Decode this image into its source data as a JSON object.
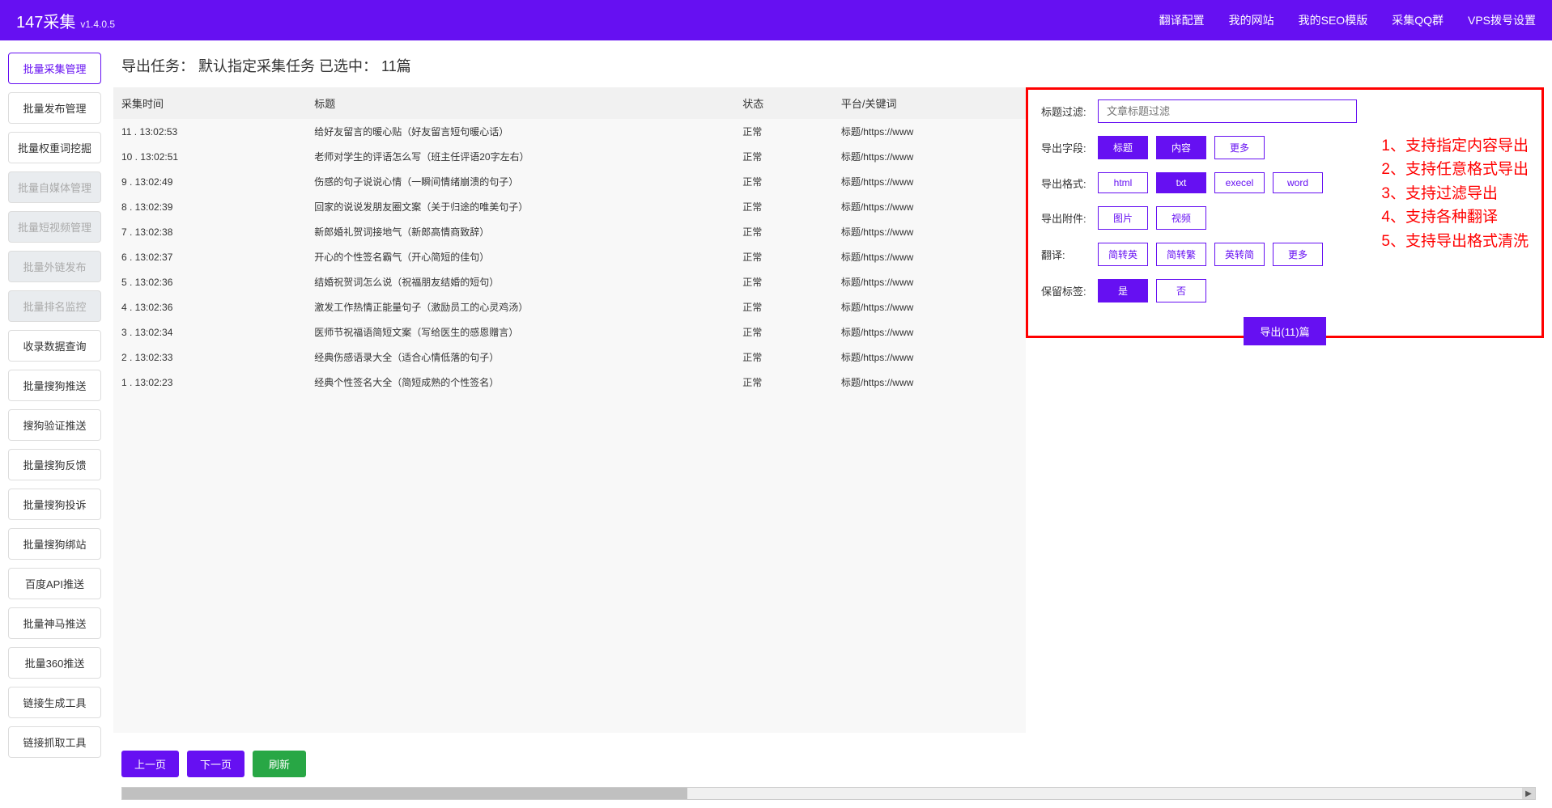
{
  "header": {
    "title": "147采集",
    "version": "v1.4.0.5",
    "nav": [
      "翻译配置",
      "我的网站",
      "我的SEO模版",
      "采集QQ群",
      "VPS拨号设置"
    ]
  },
  "sidebar": {
    "items": [
      {
        "label": "批量采集管理",
        "state": "active"
      },
      {
        "label": "批量发布管理",
        "state": "normal"
      },
      {
        "label": "批量权重词挖掘",
        "state": "normal"
      },
      {
        "label": "批量自媒体管理",
        "state": "disabled"
      },
      {
        "label": "批量短视频管理",
        "state": "disabled"
      },
      {
        "label": "批量外链发布",
        "state": "disabled"
      },
      {
        "label": "批量排名监控",
        "state": "disabled"
      },
      {
        "label": "收录数据查询",
        "state": "normal"
      },
      {
        "label": "批量搜狗推送",
        "state": "normal"
      },
      {
        "label": "搜狗验证推送",
        "state": "normal"
      },
      {
        "label": "批量搜狗反馈",
        "state": "normal"
      },
      {
        "label": "批量搜狗投诉",
        "state": "normal"
      },
      {
        "label": "批量搜狗绑站",
        "state": "normal"
      },
      {
        "label": "百度API推送",
        "state": "normal"
      },
      {
        "label": "批量神马推送",
        "state": "normal"
      },
      {
        "label": "批量360推送",
        "state": "normal"
      },
      {
        "label": "链接生成工具",
        "state": "normal"
      },
      {
        "label": "链接抓取工具",
        "state": "normal"
      }
    ]
  },
  "page": {
    "title_prefix": "导出任务：",
    "task_name": "默认指定采集任务",
    "selected_label": "已选中：",
    "selected_count": "11篇"
  },
  "table": {
    "columns": [
      "采集时间",
      "标题",
      "状态",
      "平台/关键词"
    ],
    "rows": [
      {
        "idx": "11",
        "time": "13:02:53",
        "title": "给好友留言的暖心贴（好友留言短句暖心话）",
        "status": "正常",
        "platform": "标题/https://www"
      },
      {
        "idx": "10",
        "time": "13:02:51",
        "title": "老师对学生的评语怎么写（班主任评语20字左右）",
        "status": "正常",
        "platform": "标题/https://www"
      },
      {
        "idx": "9",
        "time": "13:02:49",
        "title": "伤感的句子说说心情（一瞬间情绪崩溃的句子）",
        "status": "正常",
        "platform": "标题/https://www"
      },
      {
        "idx": "8",
        "time": "13:02:39",
        "title": "回家的说说发朋友圈文案（关于归途的唯美句子）",
        "status": "正常",
        "platform": "标题/https://www"
      },
      {
        "idx": "7",
        "time": "13:02:38",
        "title": "新郎婚礼贺词接地气（新郎高情商致辞）",
        "status": "正常",
        "platform": "标题/https://www"
      },
      {
        "idx": "6",
        "time": "13:02:37",
        "title": "开心的个性签名霸气（开心简短的佳句）",
        "status": "正常",
        "platform": "标题/https://www"
      },
      {
        "idx": "5",
        "time": "13:02:36",
        "title": "结婚祝贺词怎么说（祝福朋友结婚的短句）",
        "status": "正常",
        "platform": "标题/https://www"
      },
      {
        "idx": "4",
        "time": "13:02:36",
        "title": "激发工作热情正能量句子（激励员工的心灵鸡汤）",
        "status": "正常",
        "platform": "标题/https://www"
      },
      {
        "idx": "3",
        "time": "13:02:34",
        "title": "医师节祝福语简短文案（写给医生的感恩赠言）",
        "status": "正常",
        "platform": "标题/https://www"
      },
      {
        "idx": "2",
        "time": "13:02:33",
        "title": "经典伤感语录大全（适合心情低落的句子）",
        "status": "正常",
        "platform": "标题/https://www"
      },
      {
        "idx": "1",
        "time": "13:02:23",
        "title": "经典个性签名大全（简短成熟的个性签名）",
        "status": "正常",
        "platform": "标题/https://www"
      }
    ]
  },
  "config": {
    "title_filter": {
      "label": "标题过滤:",
      "placeholder": "文章标题过滤"
    },
    "fields": {
      "label": "导出字段:",
      "options": [
        {
          "label": "标题",
          "selected": true
        },
        {
          "label": "内容",
          "selected": true
        },
        {
          "label": "更多",
          "selected": false
        }
      ]
    },
    "format": {
      "label": "导出格式:",
      "options": [
        {
          "label": "html",
          "selected": false
        },
        {
          "label": "txt",
          "selected": true
        },
        {
          "label": "execel",
          "selected": false
        },
        {
          "label": "word",
          "selected": false
        }
      ]
    },
    "attach": {
      "label": "导出附件:",
      "options": [
        {
          "label": "图片",
          "selected": false
        },
        {
          "label": "视频",
          "selected": false
        }
      ]
    },
    "translate": {
      "label": "翻译:",
      "options": [
        {
          "label": "简转英",
          "selected": false
        },
        {
          "label": "简转繁",
          "selected": false
        },
        {
          "label": "英转简",
          "selected": false
        },
        {
          "label": "更多",
          "selected": false
        }
      ]
    },
    "keep_tags": {
      "label": "保留标签:",
      "options": [
        {
          "label": "是",
          "selected": true
        },
        {
          "label": "否",
          "selected": false
        }
      ]
    },
    "export_button": "导出(11)篇",
    "features": [
      "1、支持指定内容导出",
      "2、支持任意格式导出",
      "3、支持过滤导出",
      "4、支持各种翻译",
      "5、支持导出格式清洗"
    ]
  },
  "footer": {
    "prev": "上一页",
    "next": "下一页",
    "refresh": "刷新"
  },
  "colors": {
    "primary": "#6610f2",
    "highlight_border": "#ff0000",
    "success": "#28a745"
  }
}
